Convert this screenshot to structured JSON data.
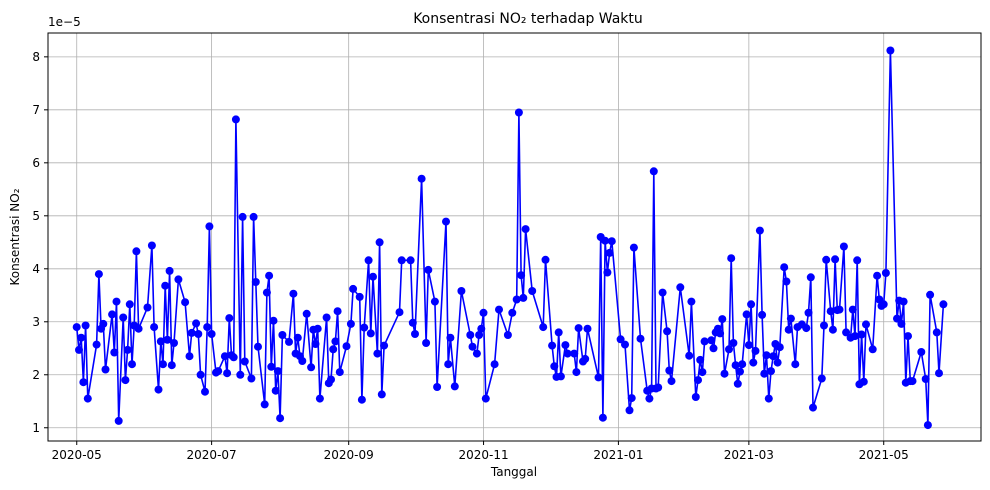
{
  "chart_data": {
    "type": "line",
    "title": "Konsentrasi NO₂ terhadap Waktu",
    "xlabel": "Tanggal",
    "ylabel": "Konsentrasi NO₂",
    "y_scale_label": "1e−5",
    "y_scale": 1e-05,
    "ylim": [
      0.75,
      8.45
    ],
    "y_ticks": [
      1,
      2,
      3,
      4,
      5,
      6,
      7,
      8
    ],
    "xlim": [
      "2020-04-18",
      "2021-06-14"
    ],
    "x_ticks": [
      {
        "date": "2020-05-01",
        "label": "2020-05"
      },
      {
        "date": "2020-07-01",
        "label": "2020-07"
      },
      {
        "date": "2020-09-01",
        "label": "2020-09"
      },
      {
        "date": "2020-11-01",
        "label": "2020-11"
      },
      {
        "date": "2021-01-01",
        "label": "2021-01"
      },
      {
        "date": "2021-03-01",
        "label": "2021-03"
      },
      {
        "date": "2021-05-01",
        "label": "2021-05"
      }
    ],
    "grid": true,
    "line_color": "#0000ff",
    "marker_color": "#0000ff",
    "series": [
      {
        "values": [
          [
            "2020-05-01",
            2.9
          ],
          [
            "2020-05-02",
            2.47
          ],
          [
            "2020-05-03",
            2.7
          ],
          [
            "2020-05-04",
            1.86
          ],
          [
            "2020-05-05",
            2.93
          ],
          [
            "2020-05-06",
            1.55
          ],
          [
            "2020-05-10",
            2.57
          ],
          [
            "2020-05-11",
            3.9
          ],
          [
            "2020-05-12",
            2.87
          ],
          [
            "2020-05-13",
            2.96
          ],
          [
            "2020-05-14",
            2.1
          ],
          [
            "2020-05-17",
            3.14
          ],
          [
            "2020-05-18",
            2.42
          ],
          [
            "2020-05-19",
            3.38
          ],
          [
            "2020-05-20",
            1.13
          ],
          [
            "2020-05-22",
            3.08
          ],
          [
            "2020-05-23",
            1.9
          ],
          [
            "2020-05-24",
            2.47
          ],
          [
            "2020-05-25",
            3.33
          ],
          [
            "2020-05-26",
            2.2
          ],
          [
            "2020-05-27",
            2.93
          ],
          [
            "2020-05-28",
            4.33
          ],
          [
            "2020-05-29",
            2.87
          ],
          [
            "2020-06-02",
            3.27
          ],
          [
            "2020-06-04",
            4.44
          ],
          [
            "2020-06-05",
            2.9
          ],
          [
            "2020-06-07",
            1.72
          ],
          [
            "2020-06-08",
            2.63
          ],
          [
            "2020-06-09",
            2.2
          ],
          [
            "2020-06-10",
            3.68
          ],
          [
            "2020-06-11",
            2.66
          ],
          [
            "2020-06-12",
            3.96
          ],
          [
            "2020-06-13",
            2.18
          ],
          [
            "2020-06-14",
            2.6
          ],
          [
            "2020-06-16",
            3.8
          ],
          [
            "2020-06-19",
            3.37
          ],
          [
            "2020-06-21",
            2.35
          ],
          [
            "2020-06-22",
            2.79
          ],
          [
            "2020-06-24",
            2.97
          ],
          [
            "2020-06-25",
            2.77
          ],
          [
            "2020-06-26",
            2.0
          ],
          [
            "2020-06-28",
            1.68
          ],
          [
            "2020-06-29",
            2.9
          ],
          [
            "2020-06-30",
            4.8
          ],
          [
            "2020-07-01",
            2.77
          ],
          [
            "2020-07-03",
            2.04
          ],
          [
            "2020-07-04",
            2.07
          ],
          [
            "2020-07-07",
            2.35
          ],
          [
            "2020-07-08",
            2.03
          ],
          [
            "2020-07-09",
            3.07
          ],
          [
            "2020-07-10",
            2.37
          ],
          [
            "2020-07-11",
            2.33
          ],
          [
            "2020-07-12",
            6.82
          ],
          [
            "2020-07-14",
            2.0
          ],
          [
            "2020-07-15",
            4.98
          ],
          [
            "2020-07-16",
            2.25
          ],
          [
            "2020-07-19",
            1.93
          ],
          [
            "2020-07-20",
            4.98
          ],
          [
            "2020-07-21",
            3.75
          ],
          [
            "2020-07-22",
            2.53
          ],
          [
            "2020-07-25",
            1.44
          ],
          [
            "2020-07-26",
            3.55
          ],
          [
            "2020-07-27",
            3.87
          ],
          [
            "2020-07-28",
            2.15
          ],
          [
            "2020-07-29",
            3.02
          ],
          [
            "2020-07-30",
            1.7
          ],
          [
            "2020-07-31",
            2.07
          ],
          [
            "2020-08-01",
            1.18
          ],
          [
            "2020-08-02",
            2.75
          ],
          [
            "2020-08-05",
            2.62
          ],
          [
            "2020-08-07",
            3.53
          ],
          [
            "2020-08-08",
            2.4
          ],
          [
            "2020-08-09",
            2.7
          ],
          [
            "2020-08-10",
            2.35
          ],
          [
            "2020-08-11",
            2.26
          ],
          [
            "2020-08-13",
            3.15
          ],
          [
            "2020-08-15",
            2.14
          ],
          [
            "2020-08-16",
            2.85
          ],
          [
            "2020-08-17",
            2.58
          ],
          [
            "2020-08-18",
            2.87
          ],
          [
            "2020-08-19",
            1.55
          ],
          [
            "2020-08-22",
            3.08
          ],
          [
            "2020-08-23",
            1.84
          ],
          [
            "2020-08-24",
            1.91
          ],
          [
            "2020-08-25",
            2.48
          ],
          [
            "2020-08-26",
            2.63
          ],
          [
            "2020-08-27",
            3.2
          ],
          [
            "2020-08-28",
            2.05
          ],
          [
            "2020-08-31",
            2.54
          ],
          [
            "2020-09-02",
            2.96
          ],
          [
            "2020-09-03",
            3.62
          ],
          [
            "2020-09-06",
            3.47
          ],
          [
            "2020-09-07",
            1.53
          ],
          [
            "2020-09-08",
            2.89
          ],
          [
            "2020-09-10",
            4.16
          ],
          [
            "2020-09-11",
            2.78
          ],
          [
            "2020-09-12",
            3.85
          ],
          [
            "2020-09-14",
            2.4
          ],
          [
            "2020-09-15",
            4.5
          ],
          [
            "2020-09-16",
            1.63
          ],
          [
            "2020-09-17",
            2.55
          ],
          [
            "2020-09-24",
            3.18
          ],
          [
            "2020-09-25",
            4.16
          ],
          [
            "2020-09-29",
            4.16
          ],
          [
            "2020-09-30",
            2.98
          ],
          [
            "2020-10-01",
            2.77
          ],
          [
            "2020-10-04",
            5.7
          ],
          [
            "2020-10-06",
            2.6
          ],
          [
            "2020-10-07",
            3.98
          ],
          [
            "2020-10-10",
            3.38
          ],
          [
            "2020-10-11",
            1.77
          ],
          [
            "2020-10-15",
            4.89
          ],
          [
            "2020-10-16",
            2.2
          ],
          [
            "2020-10-17",
            2.7
          ],
          [
            "2020-10-19",
            1.78
          ],
          [
            "2020-10-22",
            3.58
          ],
          [
            "2020-10-26",
            2.75
          ],
          [
            "2020-10-27",
            2.53
          ],
          [
            "2020-10-29",
            2.4
          ],
          [
            "2020-10-30",
            2.75
          ],
          [
            "2020-10-31",
            2.87
          ],
          [
            "2020-11-01",
            3.17
          ],
          [
            "2020-11-02",
            1.55
          ],
          [
            "2020-11-06",
            2.2
          ],
          [
            "2020-11-08",
            3.23
          ],
          [
            "2020-11-12",
            2.75
          ],
          [
            "2020-11-14",
            3.17
          ],
          [
            "2020-11-16",
            3.42
          ],
          [
            "2020-11-17",
            6.95
          ],
          [
            "2020-11-18",
            3.88
          ],
          [
            "2020-11-19",
            3.45
          ],
          [
            "2020-11-20",
            4.75
          ],
          [
            "2020-11-23",
            3.58
          ],
          [
            "2020-11-28",
            2.9
          ],
          [
            "2020-11-29",
            4.17
          ],
          [
            "2020-12-02",
            2.55
          ],
          [
            "2020-12-03",
            2.16
          ],
          [
            "2020-12-04",
            1.96
          ],
          [
            "2020-12-05",
            2.8
          ],
          [
            "2020-12-06",
            1.97
          ],
          [
            "2020-12-08",
            2.56
          ],
          [
            "2020-12-09",
            2.4
          ],
          [
            "2020-12-12",
            2.4
          ],
          [
            "2020-12-13",
            2.05
          ],
          [
            "2020-12-14",
            2.88
          ],
          [
            "2020-12-16",
            2.25
          ],
          [
            "2020-12-17",
            2.3
          ],
          [
            "2020-12-18",
            2.87
          ],
          [
            "2020-12-23",
            1.95
          ],
          [
            "2020-12-24",
            4.6
          ],
          [
            "2020-12-25",
            1.19
          ],
          [
            "2020-12-26",
            4.53
          ],
          [
            "2020-12-27",
            3.93
          ],
          [
            "2020-12-28",
            4.3
          ],
          [
            "2020-12-29",
            4.52
          ],
          [
            "2021-01-02",
            2.67
          ],
          [
            "2021-01-04",
            2.57
          ],
          [
            "2021-01-06",
            1.33
          ],
          [
            "2021-01-07",
            1.56
          ],
          [
            "2021-01-08",
            4.4
          ],
          [
            "2021-01-11",
            2.68
          ],
          [
            "2021-01-14",
            1.7
          ],
          [
            "2021-01-15",
            1.55
          ],
          [
            "2021-01-16",
            1.74
          ],
          [
            "2021-01-17",
            5.84
          ],
          [
            "2021-01-18",
            1.74
          ],
          [
            "2021-01-19",
            1.76
          ],
          [
            "2021-01-21",
            3.55
          ],
          [
            "2021-01-23",
            2.82
          ],
          [
            "2021-01-24",
            2.08
          ],
          [
            "2021-01-25",
            1.88
          ],
          [
            "2021-01-29",
            3.65
          ],
          [
            "2021-02-02",
            2.36
          ],
          [
            "2021-02-03",
            3.38
          ],
          [
            "2021-02-05",
            1.58
          ],
          [
            "2021-02-06",
            1.9
          ],
          [
            "2021-02-07",
            2.28
          ],
          [
            "2021-02-08",
            2.05
          ],
          [
            "2021-02-09",
            2.63
          ],
          [
            "2021-02-12",
            2.65
          ],
          [
            "2021-02-13",
            2.5
          ],
          [
            "2021-02-14",
            2.8
          ],
          [
            "2021-02-15",
            2.87
          ],
          [
            "2021-02-16",
            2.78
          ],
          [
            "2021-02-17",
            3.05
          ],
          [
            "2021-02-18",
            2.02
          ],
          [
            "2021-02-20",
            2.48
          ],
          [
            "2021-02-21",
            4.2
          ],
          [
            "2021-02-22",
            2.6
          ],
          [
            "2021-02-23",
            2.18
          ],
          [
            "2021-02-24",
            1.83
          ],
          [
            "2021-02-25",
            2.06
          ],
          [
            "2021-02-26",
            2.2
          ],
          [
            "2021-02-28",
            3.14
          ],
          [
            "2021-03-01",
            2.56
          ],
          [
            "2021-03-02",
            3.33
          ],
          [
            "2021-03-03",
            2.23
          ],
          [
            "2021-03-04",
            2.45
          ],
          [
            "2021-03-06",
            4.72
          ],
          [
            "2021-03-07",
            3.13
          ],
          [
            "2021-03-08",
            2.02
          ],
          [
            "2021-03-09",
            2.37
          ],
          [
            "2021-03-10",
            1.55
          ],
          [
            "2021-03-11",
            2.07
          ],
          [
            "2021-03-12",
            2.35
          ],
          [
            "2021-03-13",
            2.58
          ],
          [
            "2021-03-14",
            2.23
          ],
          [
            "2021-03-15",
            2.52
          ],
          [
            "2021-03-17",
            4.03
          ],
          [
            "2021-03-18",
            3.76
          ],
          [
            "2021-03-19",
            2.85
          ],
          [
            "2021-03-20",
            3.06
          ],
          [
            "2021-03-22",
            2.2
          ],
          [
            "2021-03-23",
            2.9
          ],
          [
            "2021-03-25",
            2.95
          ],
          [
            "2021-03-27",
            2.88
          ],
          [
            "2021-03-28",
            3.17
          ],
          [
            "2021-03-29",
            3.84
          ],
          [
            "2021-03-30",
            1.38
          ],
          [
            "2021-04-03",
            1.93
          ],
          [
            "2021-04-04",
            2.93
          ],
          [
            "2021-04-05",
            4.17
          ],
          [
            "2021-04-07",
            3.2
          ],
          [
            "2021-04-08",
            2.85
          ],
          [
            "2021-04-09",
            4.18
          ],
          [
            "2021-04-10",
            3.22
          ],
          [
            "2021-04-11",
            3.23
          ],
          [
            "2021-04-13",
            4.42
          ],
          [
            "2021-04-14",
            2.8
          ],
          [
            "2021-04-16",
            2.7
          ],
          [
            "2021-04-17",
            3.23
          ],
          [
            "2021-04-18",
            2.73
          ],
          [
            "2021-04-19",
            4.16
          ],
          [
            "2021-04-20",
            1.82
          ],
          [
            "2021-04-21",
            2.76
          ],
          [
            "2021-04-22",
            1.87
          ],
          [
            "2021-04-23",
            2.95
          ],
          [
            "2021-04-26",
            2.48
          ],
          [
            "2021-04-28",
            3.87
          ],
          [
            "2021-04-29",
            3.42
          ],
          [
            "2021-04-30",
            3.3
          ],
          [
            "2021-05-01",
            3.33
          ],
          [
            "2021-05-02",
            3.92
          ],
          [
            "2021-05-04",
            8.12
          ],
          [
            "2021-05-07",
            3.06
          ],
          [
            "2021-05-08",
            3.4
          ],
          [
            "2021-05-09",
            2.96
          ],
          [
            "2021-05-10",
            3.38
          ],
          [
            "2021-05-11",
            1.85
          ],
          [
            "2021-05-12",
            2.73
          ],
          [
            "2021-05-13",
            1.88
          ],
          [
            "2021-05-14",
            1.88
          ],
          [
            "2021-05-18",
            2.43
          ],
          [
            "2021-05-20",
            1.92
          ],
          [
            "2021-05-21",
            1.05
          ],
          [
            "2021-05-22",
            3.51
          ],
          [
            "2021-05-25",
            2.8
          ],
          [
            "2021-05-26",
            2.03
          ],
          [
            "2021-05-28",
            3.33
          ]
        ]
      }
    ]
  }
}
